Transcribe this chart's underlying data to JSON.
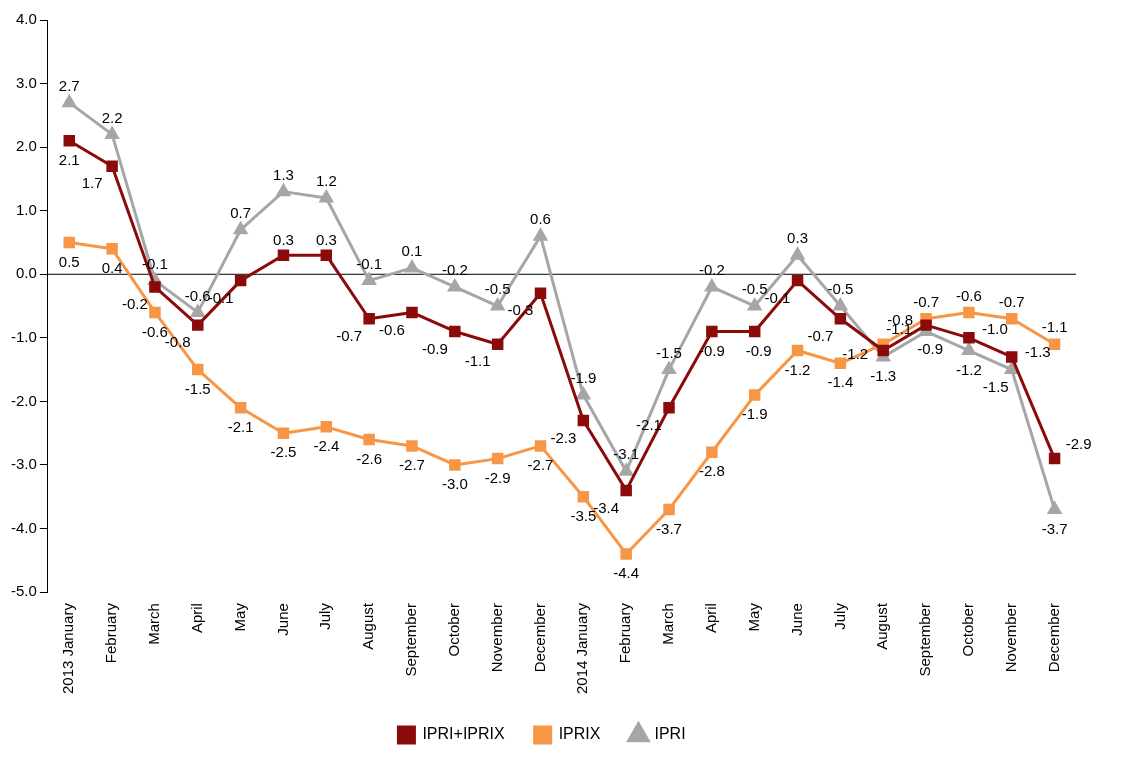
{
  "chart_data": {
    "type": "line",
    "categories": [
      "2013 January",
      "February",
      "March",
      "April",
      "May",
      "June",
      "July",
      "August",
      "September",
      "October",
      "November",
      "December",
      "2014 January",
      "February",
      "March",
      "April",
      "May",
      "June",
      "July",
      "August",
      "September",
      "October",
      "November",
      "December"
    ],
    "series": [
      {
        "name": "IPRI+IPRIX",
        "color": "#8b0a0a",
        "marker": "square",
        "values": [
          2.1,
          1.7,
          -0.2,
          -0.8,
          -0.1,
          0.3,
          0.3,
          -0.7,
          -0.6,
          -0.9,
          -1.1,
          -0.3,
          -2.3,
          -3.4,
          -2.1,
          -0.9,
          -0.9,
          -0.1,
          -0.7,
          -1.2,
          -0.8,
          -1.0,
          -1.3,
          -2.9
        ],
        "value_labels": [
          "2.1",
          "1.7",
          "-0.2",
          "-0.8",
          "-0.1",
          "0.3",
          "0.3",
          "-0.7",
          "-0.6",
          "-0.9",
          "-1.1",
          "-0.3",
          "-2.3",
          "-3.4",
          "-2.1",
          "-0.9",
          "-0.9",
          "-0.1",
          "-0.7",
          "-1.2",
          "-0.8",
          "-1.0",
          "-1.3",
          "-2.9"
        ]
      },
      {
        "name": "IPRIX",
        "color": "#f79646",
        "marker": "square",
        "values": [
          0.5,
          0.4,
          -0.6,
          -1.5,
          -2.1,
          -2.5,
          -2.4,
          -2.6,
          -2.7,
          -3.0,
          -2.9,
          -2.7,
          -3.5,
          -4.4,
          -3.7,
          -2.8,
          -1.9,
          -1.2,
          -1.4,
          -1.1,
          -0.7,
          -0.6,
          -0.7,
          -1.1
        ],
        "value_labels": [
          "0.5",
          "0.4",
          "-0.6",
          "-1.5",
          "-2.1",
          "-2.5",
          "-2.4",
          "-2.6",
          "-2.7",
          "-3.0",
          "-2.9",
          "-2.7",
          "-3.5",
          "-4.4",
          "-3.7",
          "-2.8",
          "-1.9",
          "-1.2",
          "-1.4",
          "-1.1",
          "-0.7",
          "-0.6",
          "-0.7",
          "-1.1"
        ]
      },
      {
        "name": "IPRI",
        "color": "#a6a6a6",
        "marker": "triangle",
        "values": [
          2.7,
          2.2,
          -0.1,
          -0.6,
          0.7,
          1.3,
          1.2,
          -0.1,
          0.1,
          -0.2,
          -0.5,
          0.6,
          -1.9,
          -3.1,
          -1.5,
          -0.2,
          -0.5,
          0.3,
          -0.5,
          -1.3,
          -0.9,
          -1.2,
          -1.5,
          -3.7
        ],
        "value_labels": [
          "2.7",
          "2.2",
          "-0.1",
          "-0.6",
          "0.7",
          "1.3",
          "1.2",
          "-0.1",
          "0.1",
          "-0.2",
          "-0.5",
          "0.6",
          "-1.9",
          "-3.1",
          "-1.5",
          "-0.2",
          "-0.5",
          "0.3",
          "-0.5",
          "-1.3",
          "-0.9",
          "-1.2",
          "-1.5",
          "-3.7"
        ]
      }
    ],
    "ylim": [
      -5,
      4
    ],
    "yticks": [
      {
        "value": -5,
        "label": "-5.0"
      },
      {
        "value": -4,
        "label": "-4.0"
      },
      {
        "value": -3,
        "label": "-3.0"
      },
      {
        "value": -2,
        "label": "-2.0"
      },
      {
        "value": -1,
        "label": "-1.0"
      },
      {
        "value": 0,
        "label": "0.0"
      },
      {
        "value": 1,
        "label": "1.0"
      },
      {
        "value": 2,
        "label": "2.0"
      },
      {
        "value": 3,
        "label": "3.0"
      },
      {
        "value": 4,
        "label": "4.0"
      }
    ],
    "ref_lines": [
      {
        "axis": "y",
        "value": 0,
        "color": "#000000"
      }
    ],
    "legend": "bottom"
  }
}
